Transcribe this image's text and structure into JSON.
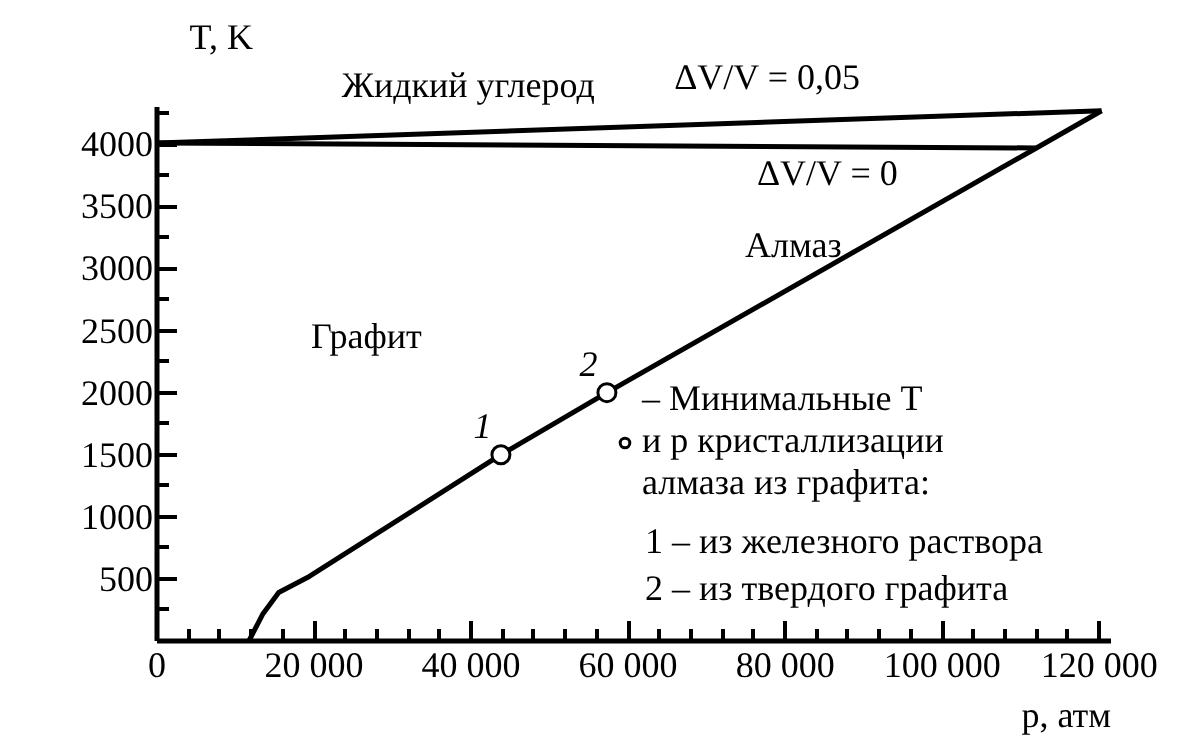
{
  "chart_data": {
    "type": "line",
    "xlabel": "p, атм",
    "ylabel": "T, K",
    "xlim": [
      0,
      121500
    ],
    "ylim": [
      0,
      4300
    ],
    "xticks": [
      {
        "value": 0,
        "label": "0"
      },
      {
        "value": 20000,
        "label": "20 000"
      },
      {
        "value": 40000,
        "label": "40 000"
      },
      {
        "value": 60000,
        "label": "60 000"
      },
      {
        "value": 80000,
        "label": "80 000"
      },
      {
        "value": 100000,
        "label": "100 000"
      },
      {
        "value": 120000,
        "label": "120 000"
      }
    ],
    "yticks": [
      500,
      1000,
      1500,
      2000,
      2500,
      3000,
      3500,
      4000
    ],
    "grid": false,
    "legend": "center",
    "marker": "none",
    "line_style": "solid",
    "series": [
      {
        "color": "#000000",
        "x": [
          11700,
          13500,
          15500,
          19400,
          43800,
          57300,
          112000,
          120300
        ],
        "values": [
          0,
          220,
          390,
          520,
          1500,
          2000,
          3970,
          4270
        ]
      },
      {
        "color": "#000000",
        "x": [
          0,
          112000
        ],
        "values": [
          4010,
          3970
        ]
      },
      {
        "color": "#000000",
        "x": [
          0,
          120300
        ],
        "values": [
          4010,
          4270
        ]
      },
      {
        "type": "scatter",
        "marker": "circle",
        "name": "– Минимальные T и p кристаллизации алмаза из графита:",
        "color": "#000000",
        "x": [
          43800,
          57300
        ],
        "values": [
          1500,
          2000
        ]
      }
    ],
    "annotations": [
      {
        "text": "1",
        "x": 43800,
        "y": 1500
      },
      {
        "text": "2",
        "x": 57300,
        "y": 2000
      },
      "Жидкий углерод",
      "ΔV/V = 0,05",
      "ΔV/V = 0",
      "Графит",
      "Алмаз",
      "1 – из железного раствора",
      "2 – из твердого графита"
    ]
  }
}
